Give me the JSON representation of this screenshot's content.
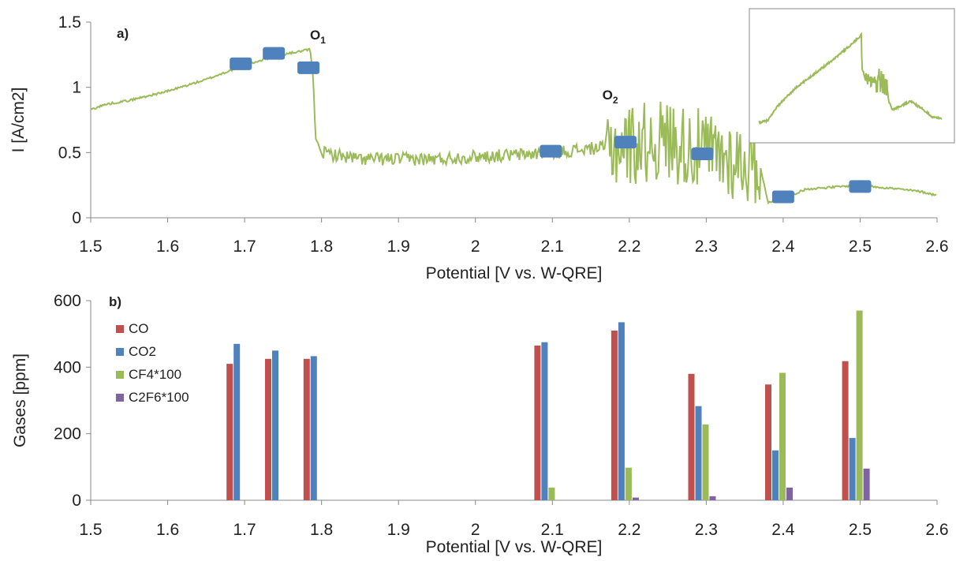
{
  "chart_data": [
    {
      "panel": "a)",
      "type": "line",
      "xlabel": "Potential [V vs. W-QRE]",
      "ylabel": "I [A/cm2]",
      "xlim": [
        1.5,
        2.6
      ],
      "ylim": [
        0,
        1.5
      ],
      "x_ticks": [
        "1.5",
        "1.6",
        "1.7",
        "1.8",
        "1.9",
        "2",
        "2.1",
        "2.2",
        "2.3",
        "2.4",
        "2.5",
        "2.6"
      ],
      "y_ticks": [
        "0",
        "0.5",
        "1",
        "1.5"
      ],
      "line_color": "#9bbb59",
      "marker_color": "#4f81bd",
      "series": [
        {
          "points": [
            [
              1.5,
              0.83
            ],
            [
              1.52,
              0.87
            ],
            [
              1.55,
              0.9
            ],
            [
              1.6,
              0.97
            ],
            [
              1.65,
              1.06
            ],
            [
              1.7,
              1.17
            ],
            [
              1.74,
              1.24
            ],
            [
              1.785,
              1.29
            ],
            [
              1.789,
              1.1
            ],
            [
              1.792,
              0.62
            ],
            [
              1.8,
              0.5
            ],
            [
              1.85,
              0.45
            ],
            [
              1.9,
              0.45
            ],
            [
              1.95,
              0.45
            ],
            [
              2.0,
              0.47
            ],
            [
              2.05,
              0.48
            ],
            [
              2.1,
              0.5
            ],
            [
              2.15,
              0.53
            ],
            [
              2.2,
              0.56
            ],
            [
              2.25,
              0.6
            ],
            [
              2.3,
              0.5
            ],
            [
              2.37,
              0.4
            ],
            [
              2.38,
              0.12
            ],
            [
              2.4,
              0.15
            ],
            [
              2.43,
              0.22
            ],
            [
              2.5,
              0.25
            ],
            [
              2.55,
              0.22
            ],
            [
              2.58,
              0.2
            ],
            [
              2.6,
              0.17
            ]
          ],
          "noisy_ranges": [
            {
              "from": 1.8,
              "to": 2.17,
              "amplitude": 0.05
            },
            {
              "from": 2.17,
              "to": 2.37,
              "amplitude": 0.32
            }
          ]
        }
      ],
      "markers": [
        {
          "x": 1.695,
          "y": 1.18
        },
        {
          "x": 1.738,
          "y": 1.26
        },
        {
          "x": 1.783,
          "y": 1.15
        },
        {
          "x": 2.098,
          "y": 0.51
        },
        {
          "x": 2.195,
          "y": 0.58
        },
        {
          "x": 2.295,
          "y": 0.49
        },
        {
          "x": 2.4,
          "y": 0.16
        },
        {
          "x": 2.5,
          "y": 0.24
        }
      ],
      "annotations": [
        {
          "main": "O",
          "sub": "1",
          "x": 1.785,
          "y": 1.32
        },
        {
          "main": "O",
          "sub": "2",
          "x": 2.165,
          "y": 0.86
        }
      ],
      "inset": {
        "points": [
          [
            0.0,
            0.1
          ],
          [
            0.05,
            0.12
          ],
          [
            0.1,
            0.25
          ],
          [
            0.2,
            0.42
          ],
          [
            0.3,
            0.55
          ],
          [
            0.4,
            0.68
          ],
          [
            0.5,
            0.82
          ],
          [
            0.55,
            0.9
          ],
          [
            0.56,
            0.92
          ],
          [
            0.565,
            0.55
          ],
          [
            0.58,
            0.52
          ],
          [
            0.62,
            0.48
          ],
          [
            0.66,
            0.5
          ],
          [
            0.7,
            0.45
          ],
          [
            0.71,
            0.3
          ],
          [
            0.73,
            0.22
          ],
          [
            0.77,
            0.25
          ],
          [
            0.83,
            0.3
          ],
          [
            0.9,
            0.22
          ],
          [
            0.95,
            0.15
          ],
          [
            1.0,
            0.14
          ]
        ],
        "noisy_ranges": [
          {
            "from": 0.56,
            "to": 0.7,
            "amplitude": 0.05
          },
          {
            "from": 0.64,
            "to": 0.7,
            "amplitude": 0.12
          }
        ]
      }
    },
    {
      "panel": "b)",
      "type": "bar",
      "xlabel": "Potential [V vs. W-QRE]",
      "ylabel": "Gases [ppm]",
      "xlim": [
        1.5,
        2.6
      ],
      "ylim": [
        0,
        600
      ],
      "x_ticks": [
        "1.5",
        "1.6",
        "1.7",
        "1.8",
        "1.9",
        "2",
        "2.1",
        "2.2",
        "2.3",
        "2.4",
        "2.5",
        "2.6"
      ],
      "y_ticks": [
        "0",
        "200",
        "400",
        "600"
      ],
      "legend_position": "top-left",
      "categories": [
        1.695,
        1.745,
        1.795,
        2.095,
        2.195,
        2.295,
        2.395,
        2.495
      ],
      "series": [
        {
          "name": "CO",
          "color": "#c0504d",
          "values": [
            410,
            425,
            425,
            465,
            510,
            380,
            348,
            418
          ]
        },
        {
          "name": "CO2",
          "color": "#4f81bd",
          "values": [
            470,
            450,
            433,
            475,
            535,
            283,
            150,
            187
          ]
        },
        {
          "name": "CF4*100",
          "color": "#9bbb59",
          "values": [
            0,
            0,
            0,
            38,
            98,
            228,
            383,
            570
          ]
        },
        {
          "name": "C2F6*100",
          "color": "#8064a2",
          "values": [
            0,
            0,
            0,
            0,
            8,
            12,
            38,
            95
          ]
        }
      ]
    }
  ]
}
